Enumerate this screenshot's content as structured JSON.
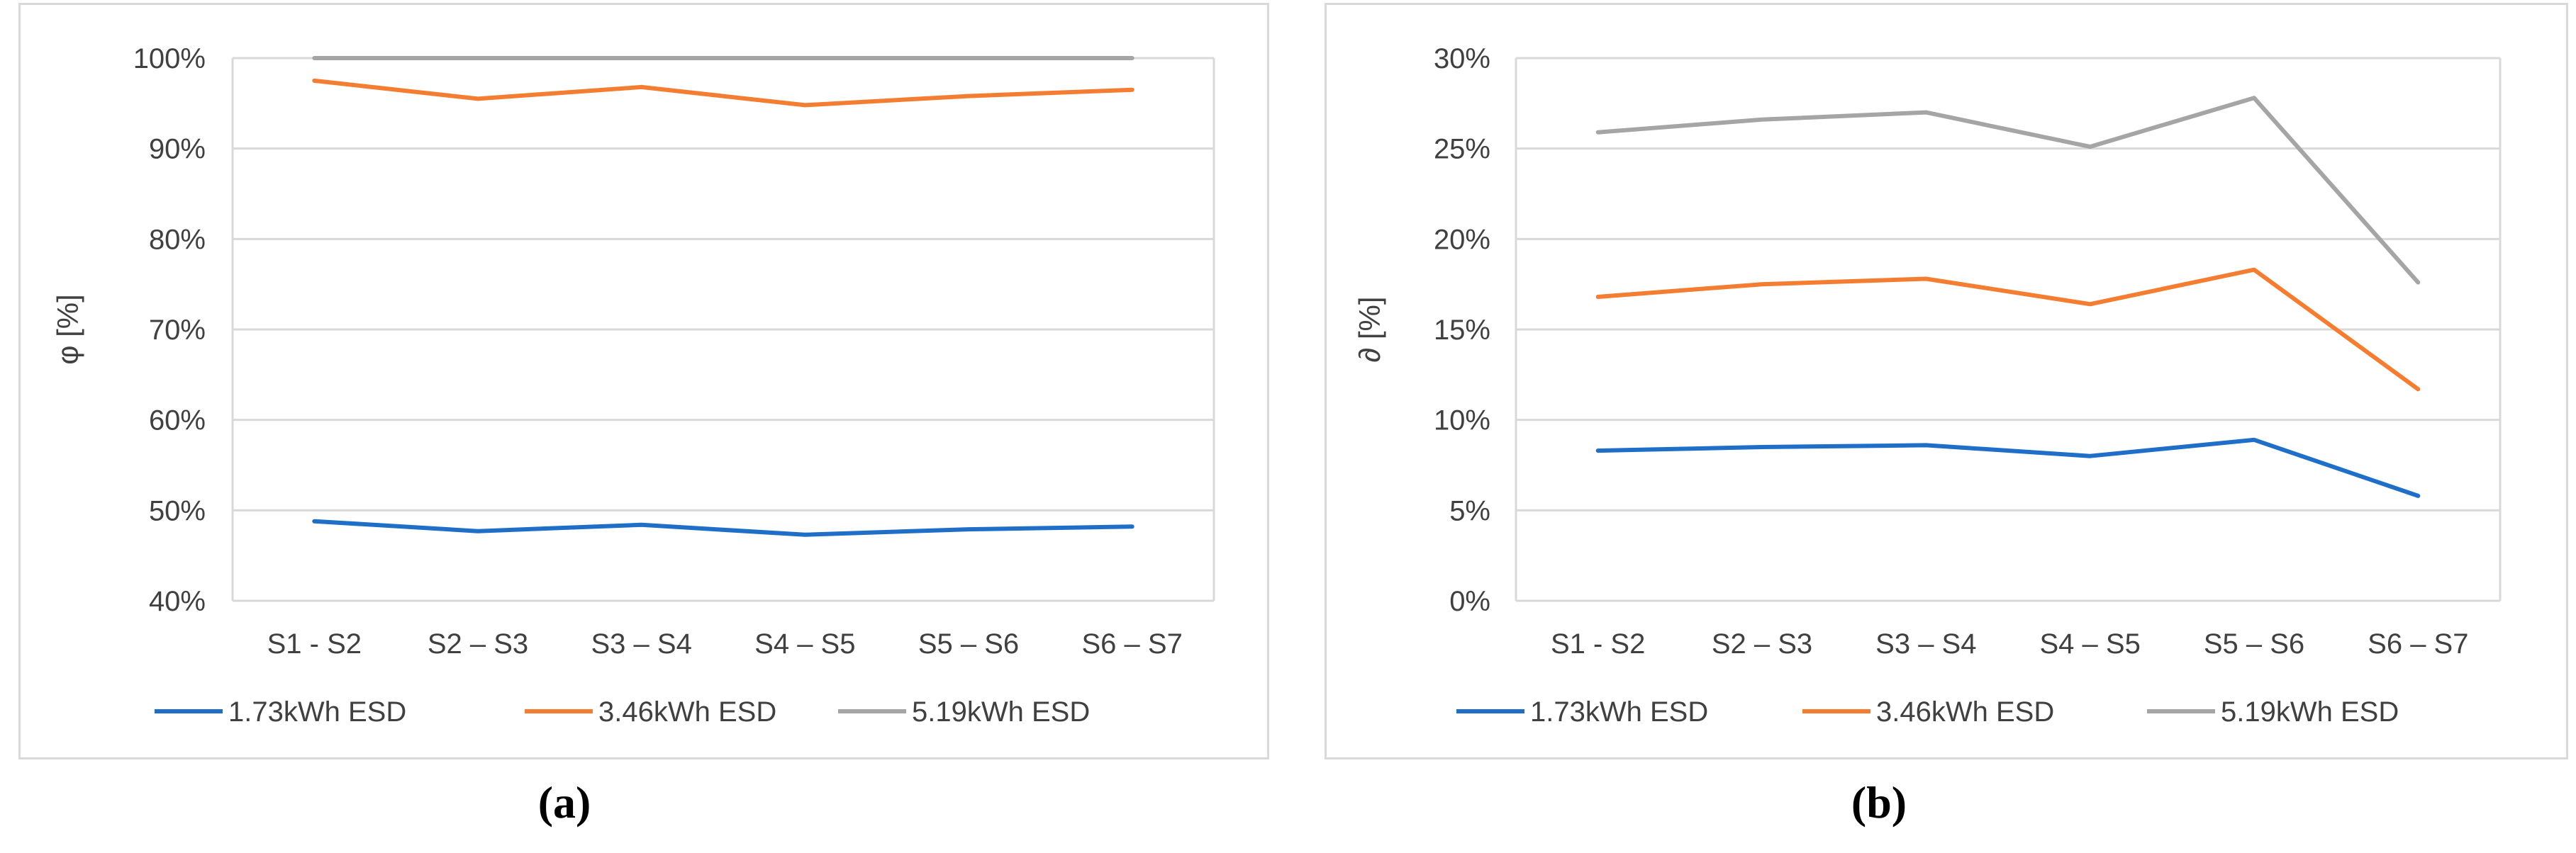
{
  "chart_data": [
    {
      "type": "line",
      "panel_label": "(a)",
      "ylabel": "φ [%]",
      "categories": [
        "S1 - S2",
        "S2 – S3",
        "S3 – S4",
        "S4 – S5",
        "S5 – S6",
        "S6 – S7"
      ],
      "ylim": [
        40,
        100
      ],
      "yticks": [
        40,
        50,
        60,
        70,
        80,
        90,
        100
      ],
      "ytick_labels": [
        "40%",
        "50%",
        "60%",
        "70%",
        "80%",
        "90%",
        "100%"
      ],
      "grid": true,
      "legend": "bottom",
      "series": [
        {
          "name": "1.73kWh ESD",
          "color": "#1f6fc8",
          "values": [
            48.8,
            47.7,
            48.4,
            47.3,
            47.9,
            48.2
          ]
        },
        {
          "name": "3.46kWh ESD",
          "color": "#f47d32",
          "values": [
            97.5,
            95.5,
            96.8,
            94.8,
            95.8,
            96.5
          ]
        },
        {
          "name": "5.19kWh ESD",
          "color": "#a5a5a5",
          "values": [
            100,
            100,
            100,
            100,
            100,
            100
          ]
        }
      ]
    },
    {
      "type": "line",
      "panel_label": "(b)",
      "ylabel": "∂ [%]",
      "categories": [
        "S1 - S2",
        "S2 – S3",
        "S3 – S4",
        "S4 – S5",
        "S5 – S6",
        "S6 – S7"
      ],
      "ylim": [
        0,
        30
      ],
      "yticks": [
        0,
        5,
        10,
        15,
        20,
        25,
        30
      ],
      "ytick_labels": [
        "0%",
        "5%",
        "10%",
        "15%",
        "20%",
        "25%",
        "30%"
      ],
      "grid": true,
      "legend": "bottom",
      "series": [
        {
          "name": "1.73kWh ESD",
          "color": "#1f6fc8",
          "values": [
            8.3,
            8.5,
            8.6,
            8.0,
            8.9,
            5.8
          ]
        },
        {
          "name": "3.46kWh ESD",
          "color": "#f47d32",
          "values": [
            16.8,
            17.5,
            17.8,
            16.4,
            18.3,
            11.7
          ]
        },
        {
          "name": "5.19kWh ESD",
          "color": "#a5a5a5",
          "values": [
            25.9,
            26.6,
            27.0,
            25.1,
            27.8,
            17.6
          ]
        }
      ]
    }
  ]
}
